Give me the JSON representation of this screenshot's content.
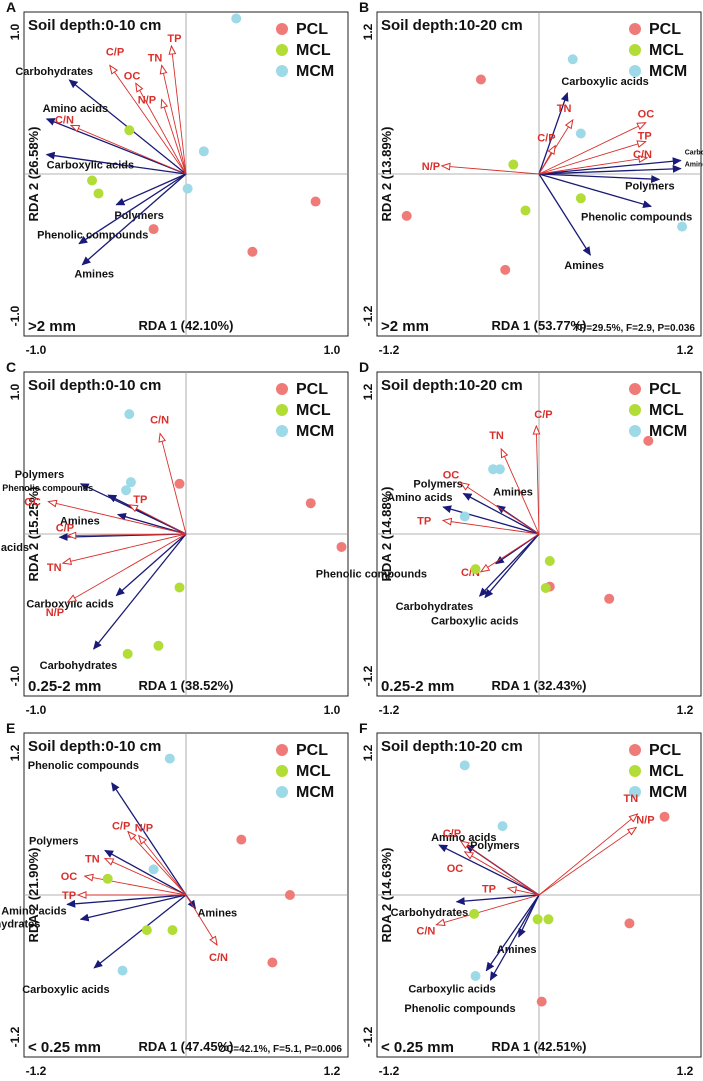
{
  "legend": [
    {
      "name": "PCL",
      "color": "#ef7b78"
    },
    {
      "name": "MCL",
      "color": "#b2dc36"
    },
    {
      "name": "MCM",
      "color": "#9ed9e8"
    }
  ],
  "colors": {
    "response_arrow": "#1a1a78",
    "env_arrow": "#d9302c",
    "axis_line": "#9a9a9a"
  },
  "chart_data": [
    {
      "type": "scatter",
      "panel": "A",
      "title": "Soil depth:0-10 cm",
      "size_class": ">2 mm",
      "xlabel": "RDA 1 (42.10%)",
      "ylabel": "RDA 2 (26.58%)",
      "xlim": [
        -1.0,
        1.0
      ],
      "ylim": [
        -1.0,
        1.0
      ],
      "xticks": [
        "-1.0",
        "1.0"
      ],
      "yticks_top": "1.0",
      "yticks_bottom": "-1.0",
      "stats": "",
      "points": {
        "PCL": [
          [
            -0.2,
            -0.34
          ],
          [
            0.41,
            -0.48
          ],
          [
            0.8,
            -0.17
          ]
        ],
        "MCL": [
          [
            -0.35,
            0.27
          ],
          [
            -0.58,
            -0.04
          ],
          [
            -0.54,
            -0.12
          ]
        ],
        "MCM": [
          [
            0.31,
            0.96
          ],
          [
            0.11,
            0.14
          ],
          [
            0.01,
            -0.09
          ]
        ]
      },
      "response_vectors": [
        {
          "label": "Carbohydrates",
          "x": -0.72,
          "y": 0.58
        },
        {
          "label": "Amino acids",
          "x": -0.86,
          "y": 0.34
        },
        {
          "label": "Carboxylic acids",
          "x": -0.86,
          "y": 0.12
        },
        {
          "label": "Polymers",
          "x": -0.43,
          "y": -0.19
        },
        {
          "label": "Phenolic compounds",
          "x": -0.66,
          "y": -0.43
        },
        {
          "label": "Amines",
          "x": -0.64,
          "y": -0.56
        }
      ],
      "env_vectors": [
        {
          "label": "C/P",
          "x": -0.47,
          "y": 0.67
        },
        {
          "label": "OC",
          "x": -0.31,
          "y": 0.56
        },
        {
          "label": "TN",
          "x": -0.15,
          "y": 0.67
        },
        {
          "label": "TP",
          "x": -0.09,
          "y": 0.79
        },
        {
          "label": "N/P",
          "x": -0.15,
          "y": 0.46
        },
        {
          "label": "C/N",
          "x": -0.71,
          "y": 0.3
        }
      ]
    },
    {
      "type": "scatter",
      "panel": "B",
      "title": "Soil depth:10-20 cm",
      "size_class": ">2 mm",
      "xlabel": "RDA 1 (53.77%)",
      "ylabel": "RDA 2 (13.89%)",
      "xlim": [
        -1.2,
        1.2
      ],
      "ylim": [
        -1.2,
        1.2
      ],
      "xticks": [
        "-1.2",
        "1.2"
      ],
      "yticks_top": "1.2",
      "yticks_bottom": "-1.2",
      "stats": "TP=29.5%, F=2.9, P=0.036",
      "points": {
        "PCL": [
          [
            -0.43,
            0.7
          ],
          [
            -0.98,
            -0.31
          ],
          [
            -0.25,
            -0.71
          ]
        ],
        "MCL": [
          [
            -0.19,
            0.07
          ],
          [
            -0.1,
            -0.27
          ],
          [
            0.31,
            -0.18
          ]
        ],
        "MCM": [
          [
            0.25,
            0.85
          ],
          [
            0.31,
            0.3
          ],
          [
            1.06,
            -0.39
          ]
        ]
      },
      "response_vectors": [
        {
          "label": "Carboxylic acids",
          "x": 0.21,
          "y": 0.6
        },
        {
          "label": "Carbohydrates",
          "x": 1.05,
          "y": 0.1
        },
        {
          "label": "Amino acids",
          "x": 1.05,
          "y": 0.04
        },
        {
          "label": "Polymers",
          "x": 0.89,
          "y": -0.04
        },
        {
          "label": "Phenolic compounds",
          "x": 0.83,
          "y": -0.24
        },
        {
          "label": "Amines",
          "x": 0.38,
          "y": -0.6
        }
      ],
      "env_vectors": [
        {
          "label": "TN",
          "x": 0.25,
          "y": 0.4
        },
        {
          "label": "C/P",
          "x": 0.12,
          "y": 0.21
        },
        {
          "label": "OC",
          "x": 0.79,
          "y": 0.38
        },
        {
          "label": "TP",
          "x": 0.79,
          "y": 0.24
        },
        {
          "label": "C/N",
          "x": 0.8,
          "y": 0.12
        },
        {
          "label": "N/P",
          "x": -0.72,
          "y": 0.06
        }
      ]
    },
    {
      "type": "scatter",
      "panel": "C",
      "title": "Soil depth:0-10 cm",
      "size_class": "0.25-2 mm",
      "xlabel": "RDA 1 (38.52%)",
      "ylabel": "RDA 2 (15.25%)",
      "xlim": [
        -1.0,
        1.0
      ],
      "ylim": [
        -1.0,
        1.0
      ],
      "xticks": [
        "-1.0",
        "1.0"
      ],
      "yticks_top": "1.0",
      "yticks_bottom": "-1.0",
      "stats": "",
      "points": {
        "PCL": [
          [
            -0.04,
            0.31
          ],
          [
            0.77,
            0.19
          ],
          [
            0.96,
            -0.08
          ]
        ],
        "MCL": [
          [
            -0.04,
            -0.33
          ],
          [
            -0.17,
            -0.69
          ],
          [
            -0.36,
            -0.74
          ]
        ],
        "MCM": [
          [
            -0.35,
            0.74
          ],
          [
            -0.34,
            0.32
          ],
          [
            -0.37,
            0.27
          ]
        ]
      },
      "response_vectors": [
        {
          "label": "Polymers",
          "x": -0.65,
          "y": 0.31
        },
        {
          "label": "Phenolic compounds",
          "x": -0.48,
          "y": 0.24
        },
        {
          "label": "Amines",
          "x": -0.42,
          "y": 0.12
        },
        {
          "label": "Amino acids",
          "x": -0.78,
          "y": -0.02
        },
        {
          "label": "Carboxylic acids",
          "x": -0.43,
          "y": -0.38
        },
        {
          "label": "Carbohydrates",
          "x": -0.57,
          "y": -0.71
        }
      ],
      "env_vectors": [
        {
          "label": "C/N",
          "x": -0.16,
          "y": 0.62
        },
        {
          "label": "TP",
          "x": -0.35,
          "y": 0.18
        },
        {
          "label": "OC",
          "x": -0.85,
          "y": 0.2
        },
        {
          "label": "C/P",
          "x": -0.73,
          "y": -0.01
        },
        {
          "label": "TN",
          "x": -0.76,
          "y": -0.18
        },
        {
          "label": "N/P",
          "x": -0.73,
          "y": -0.42
        }
      ]
    },
    {
      "type": "scatter",
      "panel": "D",
      "title": "Soil depth:10-20 cm",
      "size_class": "0.25-2 mm",
      "xlabel": "RDA 1 (32.43%)",
      "ylabel": "RDA 2 (14.88%)",
      "xlim": [
        -1.2,
        1.2
      ],
      "ylim": [
        -1.2,
        1.2
      ],
      "xticks": [
        "-1.2",
        "1.2"
      ],
      "yticks_top": "1.2",
      "yticks_bottom": "-1.2",
      "stats": "",
      "points": {
        "PCL": [
          [
            0.08,
            -0.39
          ],
          [
            0.52,
            -0.48
          ],
          [
            0.81,
            0.69
          ]
        ],
        "MCL": [
          [
            -0.47,
            -0.26
          ],
          [
            0.08,
            -0.2
          ],
          [
            0.05,
            -0.4
          ]
        ],
        "MCM": [
          [
            -0.34,
            0.48
          ],
          [
            -0.29,
            0.48
          ],
          [
            -0.55,
            0.13
          ]
        ]
      },
      "response_vectors": [
        {
          "label": "Polymers",
          "x": -0.56,
          "y": 0.3
        },
        {
          "label": "Amines",
          "x": -0.31,
          "y": 0.21
        },
        {
          "label": "Amino acids",
          "x": -0.71,
          "y": 0.2
        },
        {
          "label": "Phenolic compounds",
          "x": -0.32,
          "y": -0.22
        },
        {
          "label": "Carbohydrates",
          "x": -0.44,
          "y": -0.46
        },
        {
          "label": "Carboxylic acids",
          "x": -0.4,
          "y": -0.47
        }
      ],
      "env_vectors": [
        {
          "label": "C/P",
          "x": -0.02,
          "y": 0.8
        },
        {
          "label": "TN",
          "x": -0.28,
          "y": 0.63
        },
        {
          "label": "OC",
          "x": -0.58,
          "y": 0.38
        },
        {
          "label": "TP",
          "x": -0.71,
          "y": 0.1
        },
        {
          "label": "C/N",
          "x": -0.43,
          "y": -0.28
        }
      ]
    },
    {
      "type": "scatter",
      "panel": "E",
      "title": "Soil depth:0-10 cm",
      "size_class": "< 0.25 mm",
      "xlabel": "RDA 1 (47.45%)",
      "ylabel": "RDA 2 (21.90%)",
      "xlim": [
        -1.2,
        1.2
      ],
      "ylim": [
        -1.2,
        1.2
      ],
      "xticks": [
        "-1.2",
        "1.2"
      ],
      "yticks_top": "1.2",
      "yticks_bottom": "-1.2",
      "stats": "OC=42.1%, F=5.1, P=0.006",
      "points": {
        "PCL": [
          [
            0.41,
            0.41
          ],
          [
            0.77,
            0.0
          ],
          [
            0.64,
            -0.5
          ]
        ],
        "MCL": [
          [
            -0.58,
            0.12
          ],
          [
            -0.29,
            -0.26
          ],
          [
            -0.1,
            -0.26
          ]
        ],
        "MCM": [
          [
            -0.12,
            1.01
          ],
          [
            -0.24,
            0.19
          ],
          [
            -0.47,
            -0.56
          ]
        ]
      },
      "response_vectors": [
        {
          "label": "Phenolic compounds",
          "x": -0.55,
          "y": 0.83
        },
        {
          "label": "Polymers",
          "x": -0.6,
          "y": 0.33
        },
        {
          "label": "Amino acids",
          "x": -0.88,
          "y": -0.07
        },
        {
          "label": "Carbohydrates",
          "x": -0.78,
          "y": -0.18
        },
        {
          "label": "Carboxylic acids",
          "x": -0.68,
          "y": -0.54
        },
        {
          "label": "Amines",
          "x": 0.07,
          "y": -0.1
        }
      ],
      "env_vectors": [
        {
          "label": "C/P",
          "x": -0.43,
          "y": 0.47
        },
        {
          "label": "N/P",
          "x": -0.35,
          "y": 0.44
        },
        {
          "label": "TN",
          "x": -0.6,
          "y": 0.27
        },
        {
          "label": "OC",
          "x": -0.75,
          "y": 0.14
        },
        {
          "label": "TP",
          "x": -0.8,
          "y": 0.0
        },
        {
          "label": "C/N",
          "x": 0.23,
          "y": -0.37
        }
      ]
    },
    {
      "type": "scatter",
      "panel": "F",
      "title": "Soil depth:10-20 cm",
      "size_class": "< 0.25 mm",
      "xlabel": "RDA 1 (42.51%)",
      "ylabel": "RDA 2 (14.63%)",
      "xlim": [
        -1.2,
        1.2
      ],
      "ylim": [
        -1.2,
        1.2
      ],
      "xticks": [
        "-1.2",
        "1.2"
      ],
      "yticks_top": "1.2",
      "yticks_bottom": "-1.2",
      "stats": "",
      "points": {
        "PCL": [
          [
            0.93,
            0.58
          ],
          [
            0.67,
            -0.21
          ],
          [
            0.02,
            -0.79
          ]
        ],
        "MCL": [
          [
            -0.48,
            -0.14
          ],
          [
            -0.01,
            -0.18
          ],
          [
            0.07,
            -0.18
          ]
        ],
        "MCM": [
          [
            -0.55,
            0.96
          ],
          [
            -0.27,
            0.51
          ],
          [
            -0.47,
            -0.6
          ]
        ]
      },
      "response_vectors": [
        {
          "label": "Amino acids",
          "x": -0.74,
          "y": 0.37
        },
        {
          "label": "Polymers",
          "x": -0.54,
          "y": 0.37
        },
        {
          "label": "Carbohydrates",
          "x": -0.61,
          "y": -0.05
        },
        {
          "label": "Amines",
          "x": -0.15,
          "y": -0.31
        },
        {
          "label": "Carboxylic acids",
          "x": -0.39,
          "y": -0.56
        },
        {
          "label": "Phenolic compounds",
          "x": -0.36,
          "y": -0.63
        }
      ],
      "env_vectors": [
        {
          "label": "TN",
          "x": 0.73,
          "y": 0.6
        },
        {
          "label": "N/P",
          "x": 0.72,
          "y": 0.5
        },
        {
          "label": "C/P",
          "x": -0.58,
          "y": 0.4
        },
        {
          "label": "OC",
          "x": -0.55,
          "y": 0.32
        },
        {
          "label": "TP",
          "x": -0.23,
          "y": 0.05
        },
        {
          "label": "C/N",
          "x": -0.76,
          "y": -0.22
        }
      ]
    }
  ]
}
